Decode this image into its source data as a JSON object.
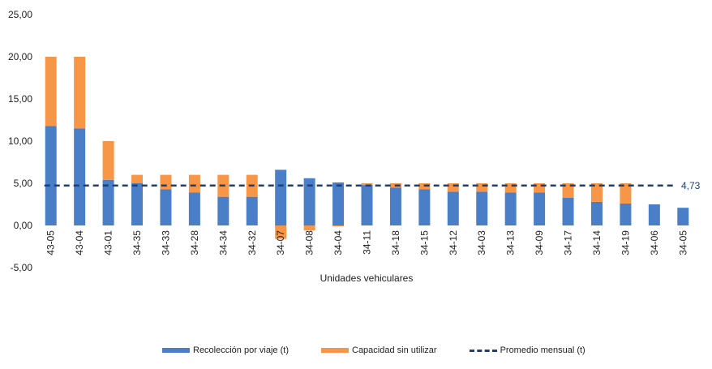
{
  "chart_data": {
    "type": "bar",
    "stacked": true,
    "xlabel": "Unidades vehiculares",
    "ylabel": "",
    "ylim": [
      -5,
      25
    ],
    "yticks": [
      "-5,00",
      "0,00",
      "5,00",
      "10,00",
      "15,00",
      "20,00",
      "25,00"
    ],
    "ytick_values": [
      -5,
      0,
      5,
      10,
      15,
      20,
      25
    ],
    "grid": false,
    "legend_position": "bottom",
    "categories": [
      "43-05",
      "43-04",
      "43-01",
      "34-35",
      "34-33",
      "34-28",
      "34-34",
      "34-32",
      "34-07",
      "34-08",
      "34-04",
      "34-11",
      "34-18",
      "34-15",
      "34-12",
      "34-03",
      "34-13",
      "34-09",
      "34-17",
      "34-14",
      "34-19",
      "34-06",
      "34-05"
    ],
    "series": [
      {
        "name": "Recolección por viaje (t)",
        "color": "#4a7ec7",
        "values": [
          11.8,
          11.5,
          5.4,
          5.0,
          4.3,
          3.9,
          3.4,
          3.4,
          6.6,
          5.6,
          5.1,
          4.8,
          4.5,
          4.3,
          4.0,
          4.0,
          3.9,
          3.9,
          3.3,
          2.8,
          2.6,
          2.5,
          2.1
        ]
      },
      {
        "name": "Capacidad sin utilizar",
        "color": "#f79646",
        "values": [
          8.2,
          8.5,
          4.6,
          1.0,
          1.7,
          2.1,
          2.6,
          2.6,
          -1.6,
          -0.6,
          -0.1,
          0.2,
          0.5,
          0.7,
          1.0,
          1.0,
          1.1,
          1.1,
          1.7,
          2.2,
          2.4,
          0.0,
          0.0
        ]
      },
      {
        "name": "Promedio mensual (t)",
        "color": "#1f3f78",
        "style": "dashed",
        "value": 4.73,
        "label": "4,73"
      }
    ]
  },
  "legend": {
    "items": [
      {
        "label": "Recolección por viaje (t)",
        "color": "#4a7ec7"
      },
      {
        "label": "Capacidad sin utilizar",
        "color": "#f79646"
      },
      {
        "label": "Promedio mensual (t)",
        "color": "#1f3f78"
      }
    ]
  }
}
